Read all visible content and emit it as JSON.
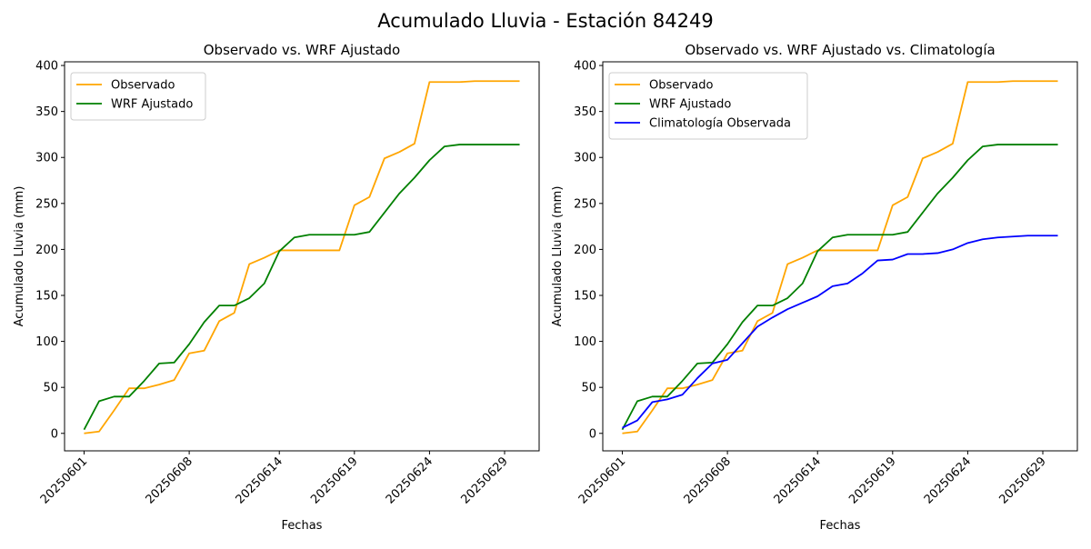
{
  "suptitle": "Acumulado Lluvia - Estación 84249",
  "colors": {
    "observado": "#FFA500",
    "wrf": "#008000",
    "clima": "#0000FF"
  },
  "chart_data": [
    {
      "type": "line",
      "title": "Observado vs. WRF Ajustado",
      "xlabel": "Fechas",
      "ylabel": "Acumulado Lluvia (mm)",
      "x_tick_labels": [
        "20250601",
        "20250608",
        "20250614",
        "20250619",
        "20250624",
        "20250629"
      ],
      "y_ticks": [
        0,
        50,
        100,
        150,
        200,
        250,
        300,
        350,
        400
      ],
      "ylim": [
        -19,
        404
      ],
      "grid": false,
      "legend_position": "upper-left",
      "x": [
        "20250601",
        "20250602",
        "20250603",
        "20250604",
        "20250605",
        "20250606",
        "20250607",
        "20250608",
        "20250609",
        "20250610",
        "20250611",
        "20250612",
        "20250613",
        "20250614",
        "20250615",
        "20250616",
        "20250617",
        "20250618",
        "20250619",
        "20250620",
        "20250621",
        "20250622",
        "20250623",
        "20250624",
        "20250625",
        "20250626",
        "20250627",
        "20250628",
        "20250629",
        "20250630"
      ],
      "series": [
        {
          "name": "Observado",
          "color_key": "observado",
          "values": [
            0,
            2,
            25,
            49,
            49,
            53,
            58,
            87,
            90,
            122,
            131,
            184,
            191,
            199,
            199,
            199,
            199,
            199,
            248,
            257,
            299,
            306,
            315,
            382,
            382,
            382,
            383,
            383,
            383,
            383
          ]
        },
        {
          "name": "WRF Ajustado",
          "color_key": "wrf",
          "values": [
            4,
            35,
            40,
            40,
            57,
            76,
            77,
            97,
            121,
            139,
            139,
            147,
            163,
            198,
            213,
            216,
            216,
            216,
            216,
            219,
            240,
            261,
            278,
            297,
            312,
            314,
            314,
            314,
            314,
            314
          ]
        }
      ]
    },
    {
      "type": "line",
      "title": "Observado vs. WRF Ajustado vs. Climatología",
      "xlabel": "Fechas",
      "ylabel": "Acumulado Lluvia (mm)",
      "x_tick_labels": [
        "20250601",
        "20250608",
        "20250614",
        "20250619",
        "20250624",
        "20250629"
      ],
      "y_ticks": [
        0,
        50,
        100,
        150,
        200,
        250,
        300,
        350,
        400
      ],
      "ylim": [
        -19,
        404
      ],
      "grid": false,
      "legend_position": "upper-left",
      "x": [
        "20250601",
        "20250602",
        "20250603",
        "20250604",
        "20250605",
        "20250606",
        "20250607",
        "20250608",
        "20250609",
        "20250610",
        "20250611",
        "20250612",
        "20250613",
        "20250614",
        "20250615",
        "20250616",
        "20250617",
        "20250618",
        "20250619",
        "20250620",
        "20250621",
        "20250622",
        "20250623",
        "20250624",
        "20250625",
        "20250626",
        "20250627",
        "20250628",
        "20250629",
        "20250630"
      ],
      "series": [
        {
          "name": "Observado",
          "color_key": "observado",
          "values": [
            0,
            2,
            25,
            49,
            49,
            53,
            58,
            87,
            90,
            122,
            131,
            184,
            191,
            199,
            199,
            199,
            199,
            199,
            248,
            257,
            299,
            306,
            315,
            382,
            382,
            382,
            383,
            383,
            383,
            383
          ]
        },
        {
          "name": "WRF Ajustado",
          "color_key": "wrf",
          "values": [
            4,
            35,
            40,
            40,
            57,
            76,
            77,
            97,
            121,
            139,
            139,
            147,
            163,
            198,
            213,
            216,
            216,
            216,
            216,
            219,
            240,
            261,
            278,
            297,
            312,
            314,
            314,
            314,
            314,
            314
          ]
        },
        {
          "name": "Climatología Observada",
          "color_key": "clima",
          "values": [
            6,
            14,
            34,
            37,
            42,
            60,
            76,
            80,
            98,
            116,
            126,
            135,
            142,
            149,
            160,
            163,
            174,
            188,
            189,
            195,
            195,
            196,
            200,
            207,
            211,
            213,
            214,
            215,
            215,
            215
          ]
        }
      ]
    }
  ]
}
